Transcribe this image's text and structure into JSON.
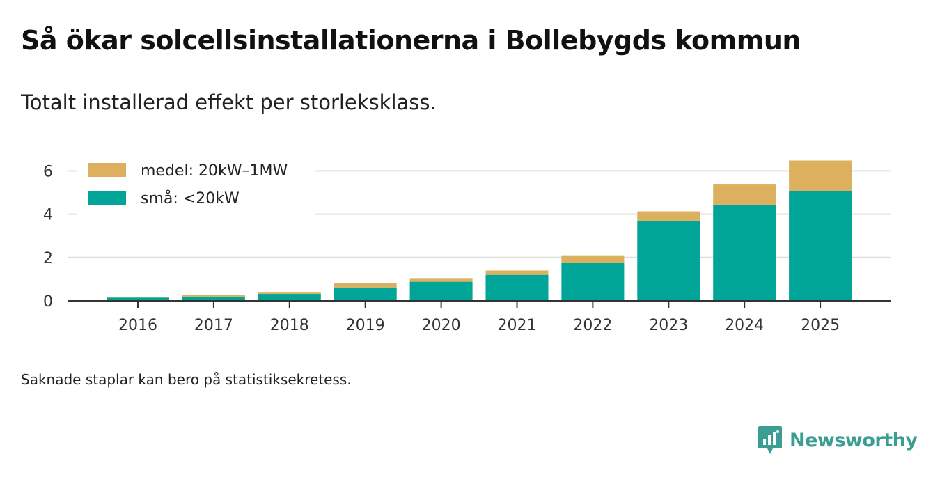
{
  "title": "Så ökar solcellsinstallationerna i Bollebygds kommun",
  "subtitle": "Totalt installerad effekt per storleksklass.",
  "footnote": "Saknade staplar kan bero på statistiksekretess.",
  "brand": {
    "name": "Newsworthy",
    "color": "#3a9e92"
  },
  "chart_data": {
    "type": "bar",
    "stacked": true,
    "categories": [
      "2016",
      "2017",
      "2018",
      "2019",
      "2020",
      "2021",
      "2022",
      "2023",
      "2024",
      "2025"
    ],
    "series": [
      {
        "name": "små: <20kW",
        "color": "#00a598",
        "values": [
          0.15,
          0.2,
          0.32,
          0.62,
          0.88,
          1.2,
          1.77,
          3.7,
          4.44,
          5.08
        ]
      },
      {
        "name": "medel: 20kW–1MW",
        "color": "#dcb05e",
        "values": [
          0.03,
          0.06,
          0.06,
          0.2,
          0.17,
          0.2,
          0.33,
          0.43,
          0.96,
          1.4
        ]
      }
    ],
    "legend_order": [
      "medel: 20kW–1MW",
      "små: <20kW"
    ],
    "y_ticks": [
      "0",
      "2",
      "4",
      "6"
    ],
    "ylim": [
      0,
      7
    ],
    "grid": true,
    "legend_position": "top-left",
    "xlabel": "",
    "ylabel": ""
  }
}
